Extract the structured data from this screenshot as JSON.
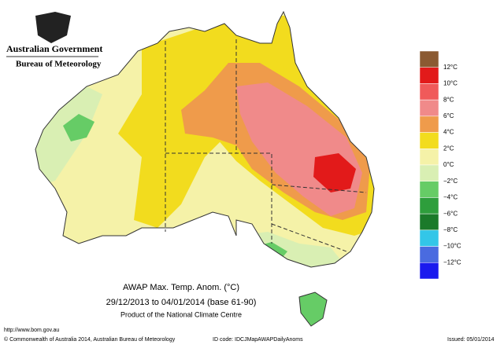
{
  "header": {
    "government": "Australian Government",
    "bureau": "Bureau of Meteorology"
  },
  "title": {
    "line1": "AWAP Max. Temp. Anom. (°C)",
    "line2": "29/12/2013 to 04/01/2014 (base 61-90)",
    "line3": "Product of the National Climate Centre"
  },
  "legend": {
    "labels": [
      "12°C",
      "10°C",
      "8°C",
      "6°C",
      "4°C",
      "2°C",
      "0°C",
      "−2°C",
      "−4°C",
      "−6°C",
      "−8°C",
      "−10°C",
      "−12°C"
    ],
    "colors": [
      "#8b5a32",
      "#e21a1a",
      "#f05a5a",
      "#f08a8a",
      "#ef9b4b",
      "#f2dc1e",
      "#f5f2a8",
      "#d9efb3",
      "#66cc66",
      "#2e9e3c",
      "#1b7a2a",
      "#33c6e8",
      "#4a6be0",
      "#1a1aee"
    ]
  },
  "footer": {
    "url": "http://www.bom.gov.au",
    "copyright": "© Commonwealth of Australia 2014, Australian Bureau of Meteorology",
    "id_code": "ID code: IDCJMapAWAPDailyAnoms",
    "issued": "Issued: 05/01/2014"
  }
}
